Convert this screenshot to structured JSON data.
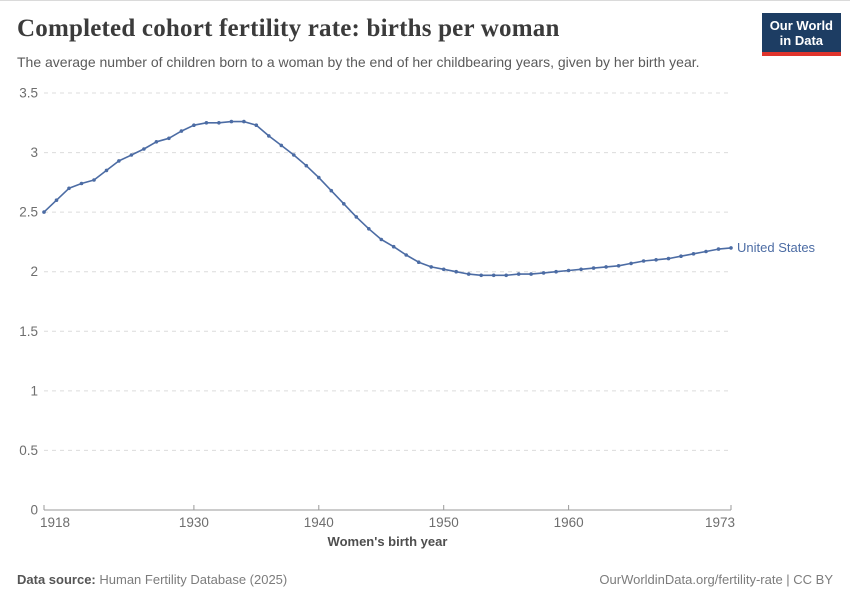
{
  "header": {
    "title": "Completed cohort fertility rate: births per woman",
    "subtitle": "The average number of children born to a woman by the end of her childbearing years, given by her birth year.",
    "logo": {
      "line1": "Our World",
      "line2": "in Data"
    }
  },
  "chart_data": {
    "type": "line",
    "title": "Completed cohort fertility rate: births per woman",
    "xlabel": "Women's birth year",
    "ylabel": "",
    "xlim": [
      1918,
      1973
    ],
    "ylim": [
      0,
      3.5
    ],
    "x_ticks": [
      1918,
      1930,
      1940,
      1950,
      1960,
      1973
    ],
    "y_ticks": [
      0,
      0.5,
      1,
      1.5,
      2,
      2.5,
      3,
      3.5
    ],
    "grid": "horizontal-dashed",
    "legend_position": "end-of-line",
    "series": [
      {
        "name": "United States",
        "color": "#4C6CA4",
        "x": [
          1918,
          1919,
          1920,
          1921,
          1922,
          1923,
          1924,
          1925,
          1926,
          1927,
          1928,
          1929,
          1930,
          1931,
          1932,
          1933,
          1934,
          1935,
          1936,
          1937,
          1938,
          1939,
          1940,
          1941,
          1942,
          1943,
          1944,
          1945,
          1946,
          1947,
          1948,
          1949,
          1950,
          1951,
          1952,
          1953,
          1954,
          1955,
          1956,
          1957,
          1958,
          1959,
          1960,
          1961,
          1962,
          1963,
          1964,
          1965,
          1966,
          1967,
          1968,
          1969,
          1970,
          1971,
          1972,
          1973
        ],
        "values": [
          2.5,
          2.6,
          2.7,
          2.74,
          2.77,
          2.85,
          2.93,
          2.98,
          3.03,
          3.09,
          3.12,
          3.18,
          3.23,
          3.25,
          3.25,
          3.26,
          3.26,
          3.23,
          3.14,
          3.06,
          2.98,
          2.89,
          2.79,
          2.68,
          2.57,
          2.46,
          2.36,
          2.27,
          2.21,
          2.14,
          2.08,
          2.04,
          2.02,
          2.0,
          1.98,
          1.97,
          1.97,
          1.97,
          1.98,
          1.98,
          1.99,
          2.0,
          2.01,
          2.02,
          2.03,
          2.04,
          2.05,
          2.07,
          2.09,
          2.1,
          2.11,
          2.13,
          2.15,
          2.17,
          2.19,
          2.2
        ]
      }
    ]
  },
  "footer": {
    "source_label": "Data source:",
    "source": "Human Fertility Database (2025)",
    "right": "OurWorldinData.org/fertility-rate | CC BY"
  },
  "colors": {
    "line": "#4C6CA4",
    "series_label": "#4C6CA4",
    "grid": "#dcdcdc",
    "axis": "#9a9a9a",
    "tick_text": "#6e6e6e",
    "axis_title_text": "#4e4e4e",
    "title_text": "#3b3b3b",
    "subtitle_text": "#5a5a5a",
    "footer_text": "#7c7c7c",
    "footer_label_text": "#555555",
    "logo_bg": "#1d3d63",
    "logo_accent": "#e0342c",
    "page_border": "#dadada"
  }
}
